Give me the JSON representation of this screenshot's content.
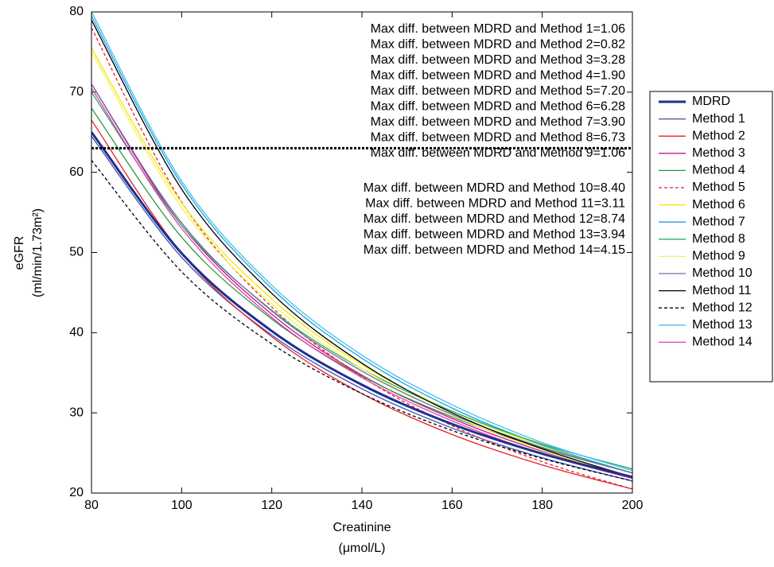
{
  "chart_data": {
    "type": "line",
    "ylabel": [
      "eGFR",
      "(ml/min/1.73m²)"
    ],
    "xlabel": [
      "Creatinine",
      "(μmol/L)"
    ],
    "x": [
      80,
      100,
      120,
      140,
      160,
      180,
      200
    ],
    "xlim": [
      80,
      200
    ],
    "ylim": [
      20,
      80
    ],
    "xticks": [
      80,
      100,
      120,
      140,
      160,
      180,
      200
    ],
    "yticks": [
      20,
      30,
      40,
      50,
      60,
      70,
      80
    ],
    "hline": 63,
    "legend": "outside-right",
    "series": [
      {
        "name": "MDRD",
        "color": "#1f2f8f",
        "width": 3,
        "values": [
          65,
          49.9,
          40.2,
          33.5,
          28.6,
          24.9,
          22
        ]
      },
      {
        "name": "Method 1",
        "color": "#3a4fb0",
        "values": [
          64.5,
          49.4,
          39.7,
          33.0,
          28.1,
          24.4,
          21.5
        ]
      },
      {
        "name": "Method 2",
        "color": "#e8202a",
        "values": [
          66.5,
          49.9,
          39.5,
          32.4,
          27.3,
          23.5,
          20.5
        ]
      },
      {
        "name": "Method 3",
        "color": "#d01090",
        "values": [
          71,
          53.4,
          42.3,
          34.7,
          29.3,
          25.2,
          22
        ]
      },
      {
        "name": "Method 4",
        "color": "#2a9a3a",
        "values": [
          68,
          51.9,
          41.7,
          34.6,
          29.5,
          25.6,
          22.5
        ]
      },
      {
        "name": "Method 5",
        "color": "#e8202a",
        "dash": true,
        "values": [
          78,
          56.3,
          43.2,
          34.5,
          28.4,
          23.9,
          20.5
        ]
      },
      {
        "name": "Method 6",
        "color": "#f2e800",
        "values": [
          75.5,
          56.2,
          44.2,
          36.0,
          30.2,
          25.9,
          22.5
        ]
      },
      {
        "name": "Method 7",
        "color": "#20a0e0",
        "values": [
          79.5,
          58.5,
          45.5,
          36.8,
          30.6,
          26.0,
          22.5
        ]
      },
      {
        "name": "Method 8",
        "color": "#20b060",
        "values": [
          70,
          53.4,
          42.8,
          35.5,
          30.2,
          26.1,
          23
        ]
      },
      {
        "name": "Method 9",
        "color": "#f4f060",
        "values": [
          75,
          55.6,
          43.6,
          35.5,
          29.7,
          25.3,
          22
        ]
      },
      {
        "name": "Method 10",
        "color": "#7070a0",
        "values": [
          71,
          53.7,
          42.7,
          35.2,
          29.8,
          25.7,
          22.5
        ]
      },
      {
        "name": "Method 11",
        "color": "#000000",
        "values": [
          79,
          57.9,
          44.9,
          36.2,
          30.0,
          25.5,
          22
        ]
      },
      {
        "name": "Method 12",
        "color": "#000000",
        "dash": true,
        "values": [
          61.5,
          47.6,
          38.6,
          32.4,
          27.8,
          24.3,
          21.5
        ]
      },
      {
        "name": "Method 13",
        "color": "#40c0f0",
        "values": [
          80,
          58.9,
          45.9,
          37.2,
          31.0,
          26.3,
          22.8
        ]
      },
      {
        "name": "Method 14",
        "color": "#e040b0",
        "values": [
          70.5,
          53.0,
          41.9,
          34.4,
          29.0,
          24.9,
          21.8
        ]
      }
    ],
    "annotations": [
      "Max diff. between MDRD and Method 1=1.06",
      "Max diff. between MDRD and Method 2=0.82",
      "Max diff. between MDRD and Method 3=3.28",
      "Max diff. between MDRD and Method 4=1.90",
      "Max diff. between MDRD and Method 5=7.20",
      "Max diff. between MDRD and Method 6=6.28",
      "Max diff. between MDRD and Method 7=3.90",
      "Max diff. between MDRD and Method 8=6.73",
      "Max diff. between MDRD and Method 9=1.06",
      "Max diff. between MDRD and Method 10=8.40",
      "Max diff. between MDRD and Method 11=3.11",
      "Max diff. between MDRD and Method 12=8.74",
      "Max diff. between MDRD and Method 13=3.94",
      "Max diff. between MDRD and Method 14=4.15"
    ]
  }
}
